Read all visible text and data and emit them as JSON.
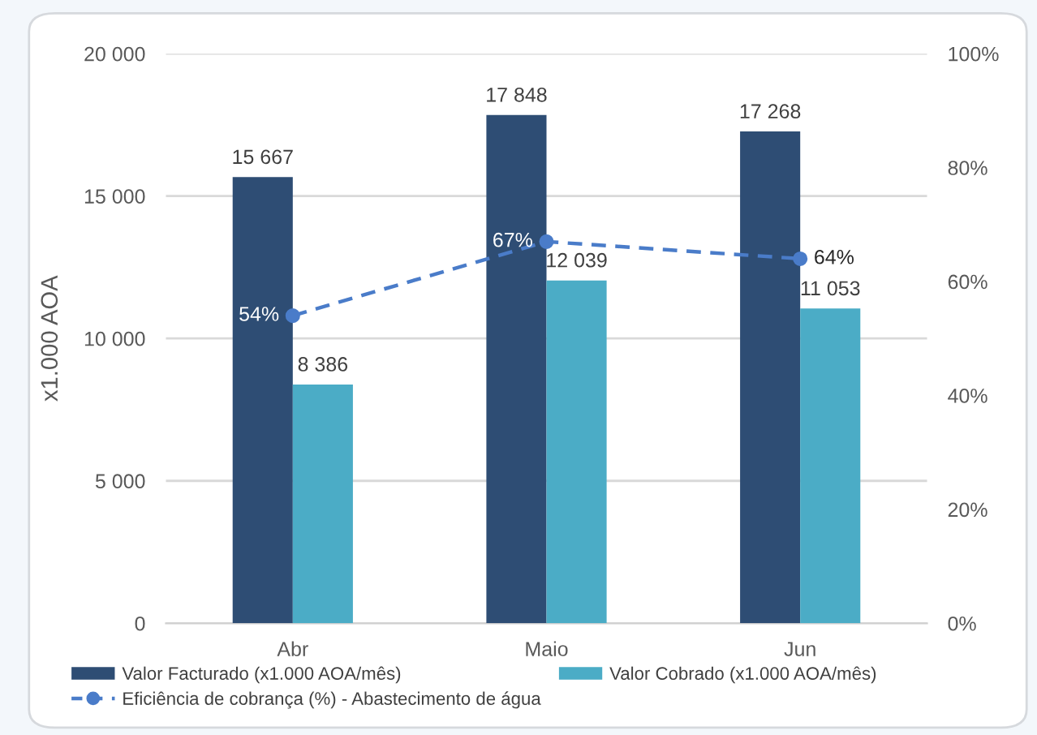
{
  "chart_data": {
    "type": "bar",
    "categories": [
      "Abr",
      "Maio",
      "Jun"
    ],
    "series": [
      {
        "name": "Valor Facturado (x1.000 AOA/mês)",
        "color": "#2e4d74",
        "values": [
          15667,
          17848,
          17268
        ],
        "value_labels": [
          "15 667",
          "17 848",
          "17 268"
        ]
      },
      {
        "name": "Valor Cobrado (x1.000 AOA/mês)",
        "color": "#4bacc6",
        "values": [
          8386,
          12039,
          11053
        ],
        "value_labels": [
          "8 386",
          "12 039",
          "11 053"
        ]
      },
      {
        "name": "Eficiência de cobrança (%) - Abastecimento de água",
        "type": "line",
        "axis": "y2",
        "color": "#4a7cc9",
        "values": [
          54,
          67,
          64
        ],
        "value_labels": [
          "54%",
          "67%",
          "64%"
        ],
        "marker": "circle",
        "line_style": "dashed"
      }
    ],
    "ylabel": "x1.000 AOA",
    "ylim": [
      0,
      20000
    ],
    "yticks": [
      0,
      {
        "value": 5000,
        "label": "5 000"
      },
      {
        "value": 10000,
        "label": "10 000"
      },
      {
        "value": 15000,
        "label": "15 000"
      },
      {
        "value": 20000,
        "label": "20 000"
      }
    ],
    "y2lim": [
      0,
      100
    ],
    "y2ticks": [
      {
        "value": 0,
        "label": "0%"
      },
      {
        "value": 20,
        "label": "20%"
      },
      {
        "value": 40,
        "label": "40%"
      },
      {
        "value": 60,
        "label": "60%"
      },
      {
        "value": 80,
        "label": "80%"
      },
      {
        "value": 100,
        "label": "100%"
      }
    ],
    "grid": "y",
    "legend": "bottom"
  }
}
